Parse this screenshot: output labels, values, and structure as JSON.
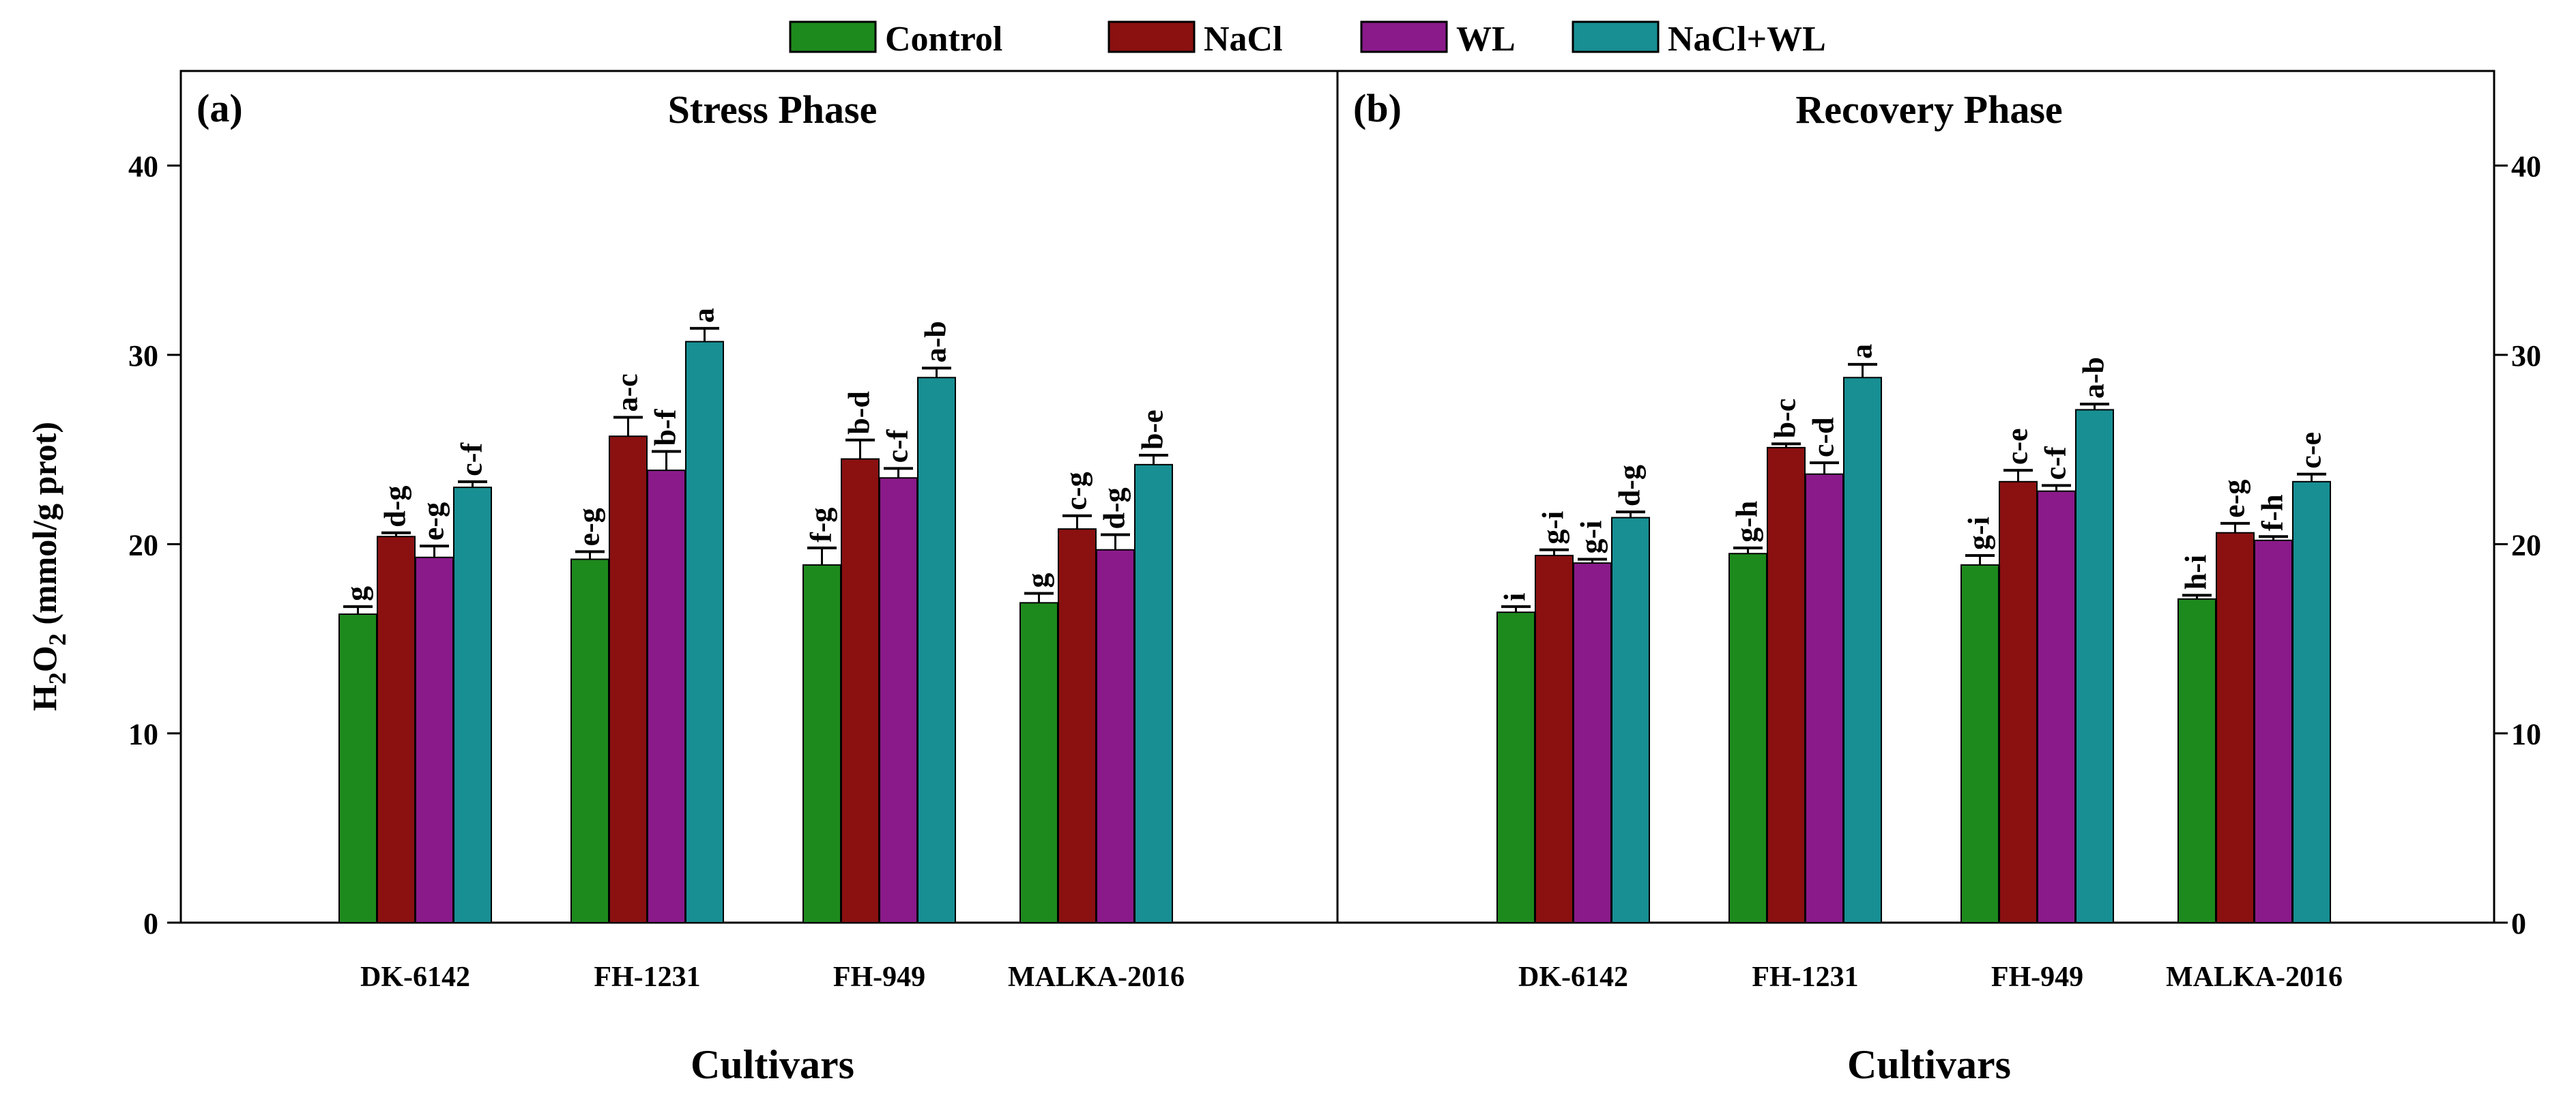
{
  "legend": [
    {
      "label": "Control",
      "color": "#1d8a1d"
    },
    {
      "label": "NaCl",
      "color": "#8b1010"
    },
    {
      "label": "WL",
      "color": "#8a1a8a"
    },
    {
      "label": "NaCl+WL",
      "color": "#188f93"
    }
  ],
  "y_axis": {
    "label_main": "H",
    "label_sub1": "2",
    "label_mid": "O",
    "label_sub2": "2",
    "label_rest": " (mmol/g prot)"
  },
  "chart_data": [
    {
      "type": "bar",
      "panel_label": "(a)",
      "title": "Stress Phase",
      "xlabel": "Cultivars",
      "ylabel": "H2O2 (mmol/g prot)",
      "ylim": [
        0,
        45
      ],
      "yticks": [
        0,
        10,
        20,
        30,
        40
      ],
      "categories": [
        "DK-6142",
        "FH-1231",
        "FH-949",
        "MALKA-2016"
      ],
      "series": [
        {
          "name": "Control",
          "values": [
            16.3,
            19.2,
            18.9,
            16.9
          ],
          "errors": [
            0.4,
            0.4,
            0.9,
            0.5
          ],
          "letters": [
            "g",
            "e-g",
            "f-g",
            "g"
          ]
        },
        {
          "name": "NaCl",
          "values": [
            20.4,
            25.7,
            24.5,
            20.8
          ],
          "errors": [
            0.2,
            1.0,
            1.0,
            0.7
          ],
          "letters": [
            "d-g",
            "a-c",
            "b-d",
            "c-g"
          ]
        },
        {
          "name": "WL",
          "values": [
            19.3,
            23.9,
            23.5,
            19.7
          ],
          "errors": [
            0.6,
            1.0,
            0.5,
            0.8
          ],
          "letters": [
            "e-g",
            "b-f",
            "c-f",
            "d-g"
          ]
        },
        {
          "name": "NaCl+WL",
          "values": [
            23.0,
            30.7,
            28.8,
            24.2
          ],
          "errors": [
            0.3,
            0.7,
            0.5,
            0.5
          ],
          "letters": [
            "c-f",
            "a",
            "a-b",
            "b-e"
          ]
        }
      ]
    },
    {
      "type": "bar",
      "panel_label": "(b)",
      "title": "Recovery Phase",
      "xlabel": "Cultivars",
      "ylabel": "H2O2 (mmol/g prot)",
      "ylim": [
        0,
        45
      ],
      "yticks": [
        0,
        10,
        20,
        30,
        40
      ],
      "categories": [
        "DK-6142",
        "FH-1231",
        "FH-949",
        "MALKA-2016"
      ],
      "series": [
        {
          "name": "Control",
          "values": [
            16.4,
            19.5,
            18.9,
            17.1
          ],
          "errors": [
            0.3,
            0.3,
            0.5,
            0.2
          ],
          "letters": [
            "i",
            "g-h",
            "g-i",
            "h-i"
          ]
        },
        {
          "name": "NaCl",
          "values": [
            19.4,
            25.1,
            23.3,
            20.6
          ],
          "errors": [
            0.3,
            0.2,
            0.6,
            0.5
          ],
          "letters": [
            "g-i",
            "b-c",
            "c-e",
            "e-g"
          ]
        },
        {
          "name": "WL",
          "values": [
            19.0,
            23.7,
            22.8,
            20.2
          ],
          "errors": [
            0.2,
            0.6,
            0.3,
            0.2
          ],
          "letters": [
            "g-i",
            "c-d",
            "c-f",
            "f-h"
          ]
        },
        {
          "name": "NaCl+WL",
          "values": [
            21.4,
            28.8,
            27.1,
            23.3
          ],
          "errors": [
            0.3,
            0.7,
            0.3,
            0.4
          ],
          "letters": [
            "d-g",
            "a",
            "a-b",
            "c-e"
          ]
        }
      ]
    }
  ]
}
